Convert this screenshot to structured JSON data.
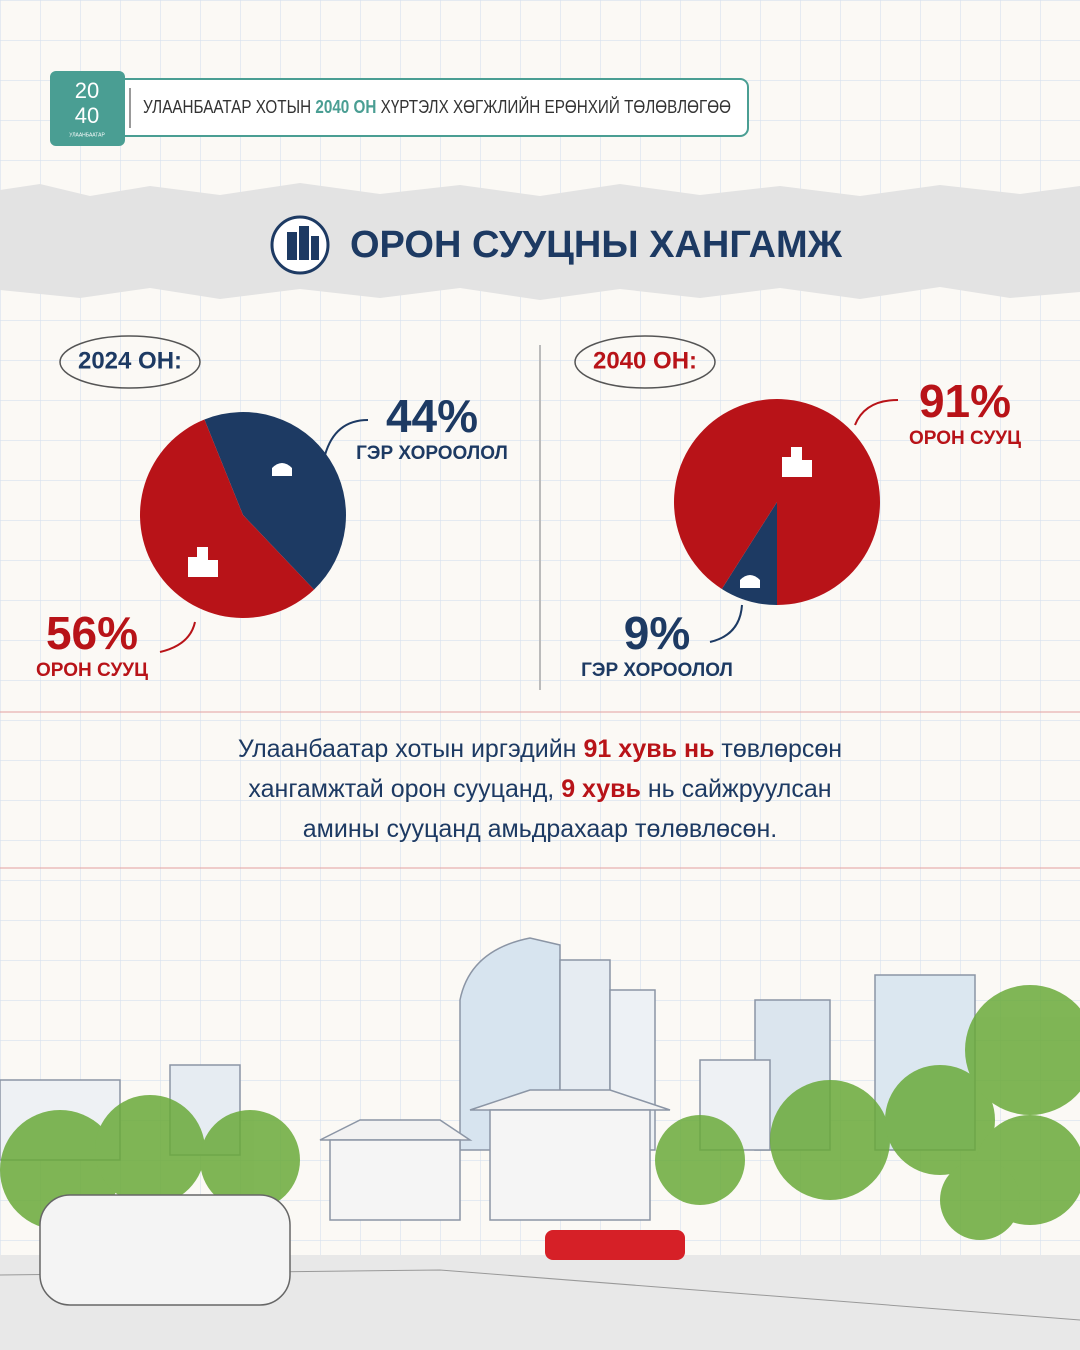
{
  "header": {
    "logo": {
      "top": "20",
      "bottom": "40",
      "caption": "УЛААНБААТАР"
    },
    "parts": [
      "УЛААНБААТАР ХОТЫН ",
      "2040 ОН",
      " ХҮРТЭЛХ ХӨГЖЛИЙН ЕРӨНХИЙ ТӨЛӨВЛӨГӨӨ"
    ]
  },
  "title": "ОРОН СУУЦНЫ ХАНГАМЖ",
  "chart_data": [
    {
      "type": "pie",
      "title": "2024 ОН:",
      "categories": [
        "ГЭР ХОРООЛОЛ",
        "ОРОН СУУЦ"
      ],
      "values": [
        44,
        56
      ],
      "value_labels": [
        "44%",
        "56%"
      ],
      "colors": [
        "#1d3a63",
        "#b81318"
      ]
    },
    {
      "type": "pie",
      "title": "2040 ОН:",
      "categories": [
        "ГЭР ХОРООЛОЛ",
        "ОРОН СУУЦ"
      ],
      "values": [
        9,
        91
      ],
      "value_labels": [
        "9%",
        "91%"
      ],
      "colors": [
        "#1d3a63",
        "#b81318"
      ]
    }
  ],
  "summary": {
    "lines": [
      [
        "Улаанбаатар хотын иргэдийн ",
        "91 хувь нь",
        " төвлөрсөн"
      ],
      [
        "хангамжтай орон сууцанд, ",
        "9 хувь",
        " нь сайжруулсан"
      ],
      [
        "амины сууцанд амьдрахаар төлөвлөсөн."
      ]
    ]
  }
}
